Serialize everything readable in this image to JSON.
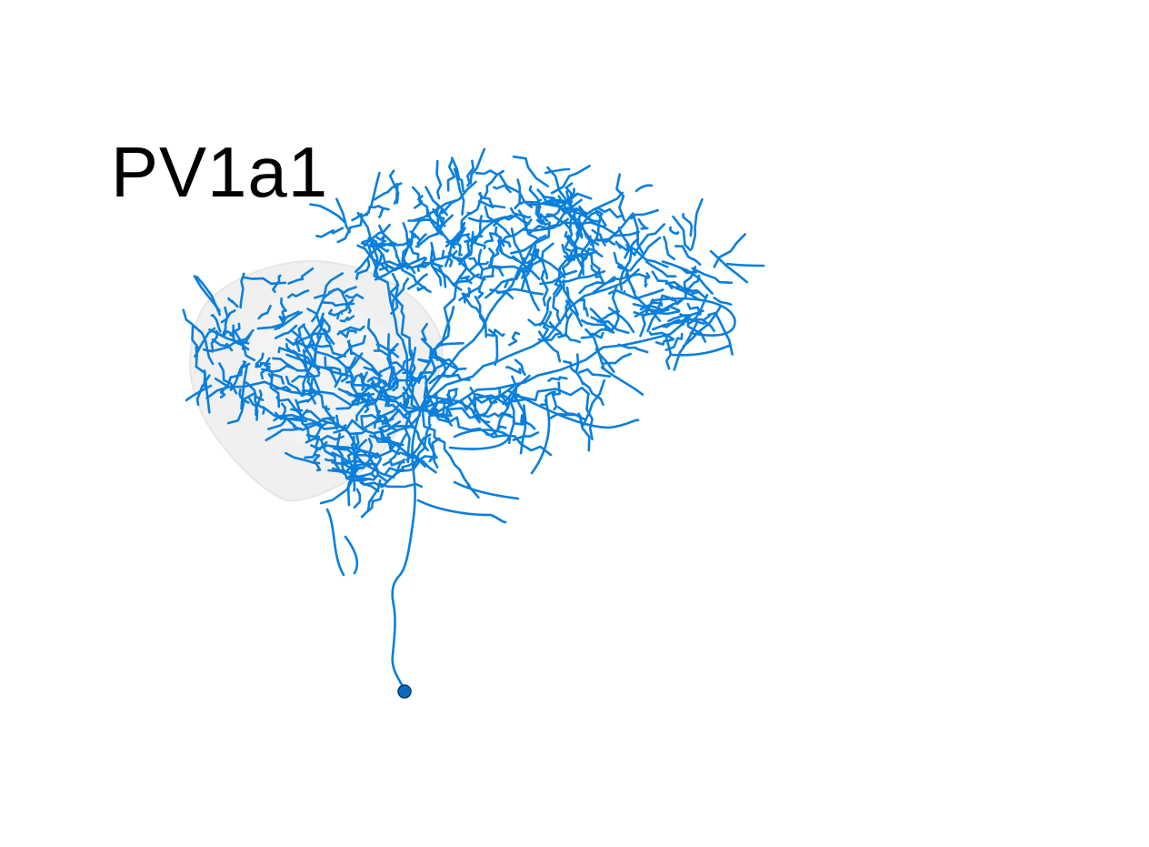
{
  "figure": {
    "label": "PV1a1",
    "neuron_color": "#0a7fdc",
    "soma_color": "#0b6cc0",
    "neuropil_color": "#ececec"
  }
}
